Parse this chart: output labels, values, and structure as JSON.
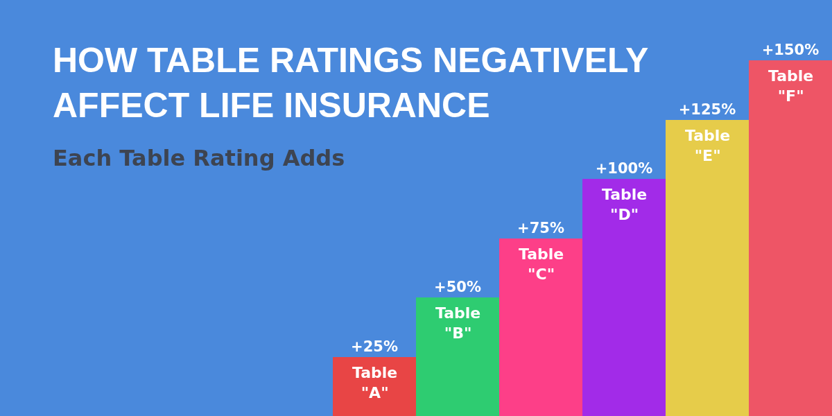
{
  "chart_data": {
    "type": "bar",
    "title": "HOW TABLE RATINGS NEGATIVELY AFFECT LIFE INSURANCE",
    "subtitle": "Each Table Rating Adds",
    "categories": [
      "Table \"A\"",
      "Table \"B\"",
      "Table \"C\"",
      "Table \"D\"",
      "Table \"E\"",
      "Table \"F\""
    ],
    "values": [
      25,
      50,
      75,
      100,
      125,
      150
    ],
    "value_labels": [
      "+25%",
      "+50%",
      "+75%",
      "+100%",
      "+125%",
      "+150%"
    ],
    "colors": [
      "#e84545",
      "#2ecc71",
      "#fd3f88",
      "#a22be8",
      "#e6cc4a",
      "#ee5566"
    ]
  }
}
